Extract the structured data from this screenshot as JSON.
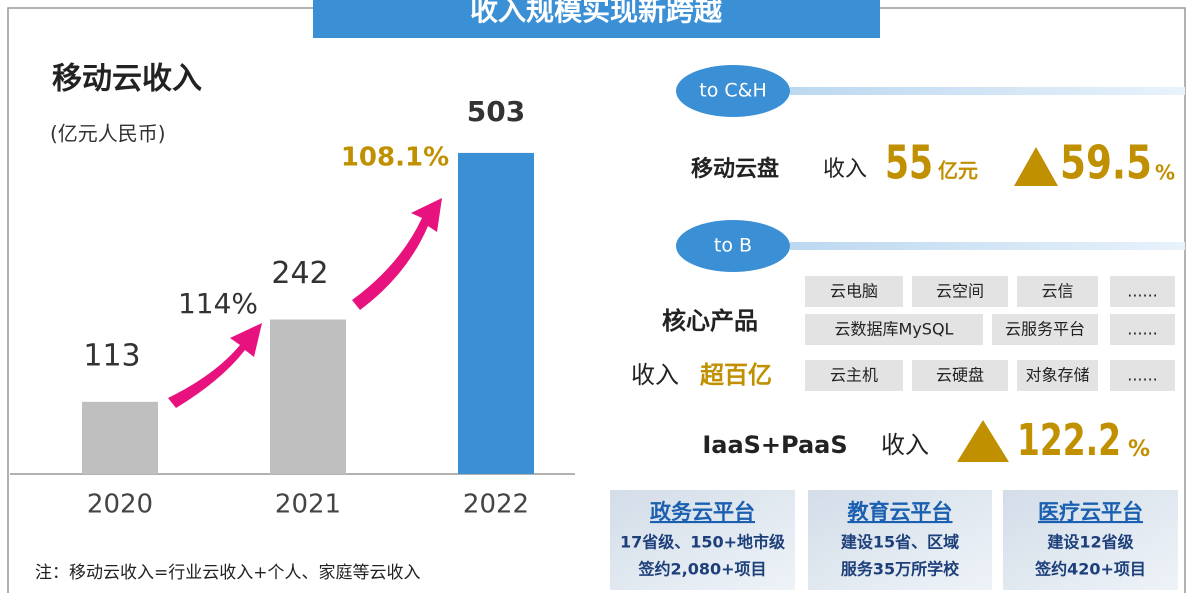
{
  "banner": "收入规模实现新跨越",
  "chart_data": {
    "type": "bar",
    "title": "移动云收入",
    "subtitle": "(亿元人民币)",
    "categories": [
      "2020",
      "2021",
      "2022"
    ],
    "values": [
      113,
      242,
      503
    ],
    "colors": [
      "#bfbfbf",
      "#bfbfbf",
      "#3a8fd5"
    ],
    "ylim": [
      0,
      600
    ],
    "annotations": [
      "114%",
      "108.1%"
    ]
  },
  "note": "注：移动云收入=行业云收入+个人、家庭等云收入",
  "cloud_drive": {
    "tag": "to C&H",
    "name": "移动云盘",
    "label": "收入",
    "amount": "55",
    "unit": "亿元",
    "growth": "59.5",
    "percent": "%"
  },
  "core": {
    "tag": "to B",
    "name": "核心产品",
    "label": "收入",
    "amount": "超百亿",
    "rows": [
      [
        "云电脑",
        "云空间",
        "云信",
        "......"
      ],
      [
        "云数据库MySQL",
        "云服务平台",
        "......"
      ],
      [
        "云主机",
        "云硬盘",
        "对象存储",
        "......"
      ]
    ]
  },
  "iaas": {
    "name": "IaaS+PaaS",
    "label": "收入",
    "growth": "122.2",
    "percent": "%"
  },
  "platforms": [
    {
      "title": "政务云平台",
      "lines": [
        "17省级、150+地市级",
        "签约2,080+项目"
      ]
    },
    {
      "title": "教育云平台",
      "lines": [
        "建设15省、区域",
        "服务35万所学校"
      ]
    },
    {
      "title": "医疗云平台",
      "lines": [
        "建设12省级",
        "签约420+项目"
      ]
    }
  ]
}
